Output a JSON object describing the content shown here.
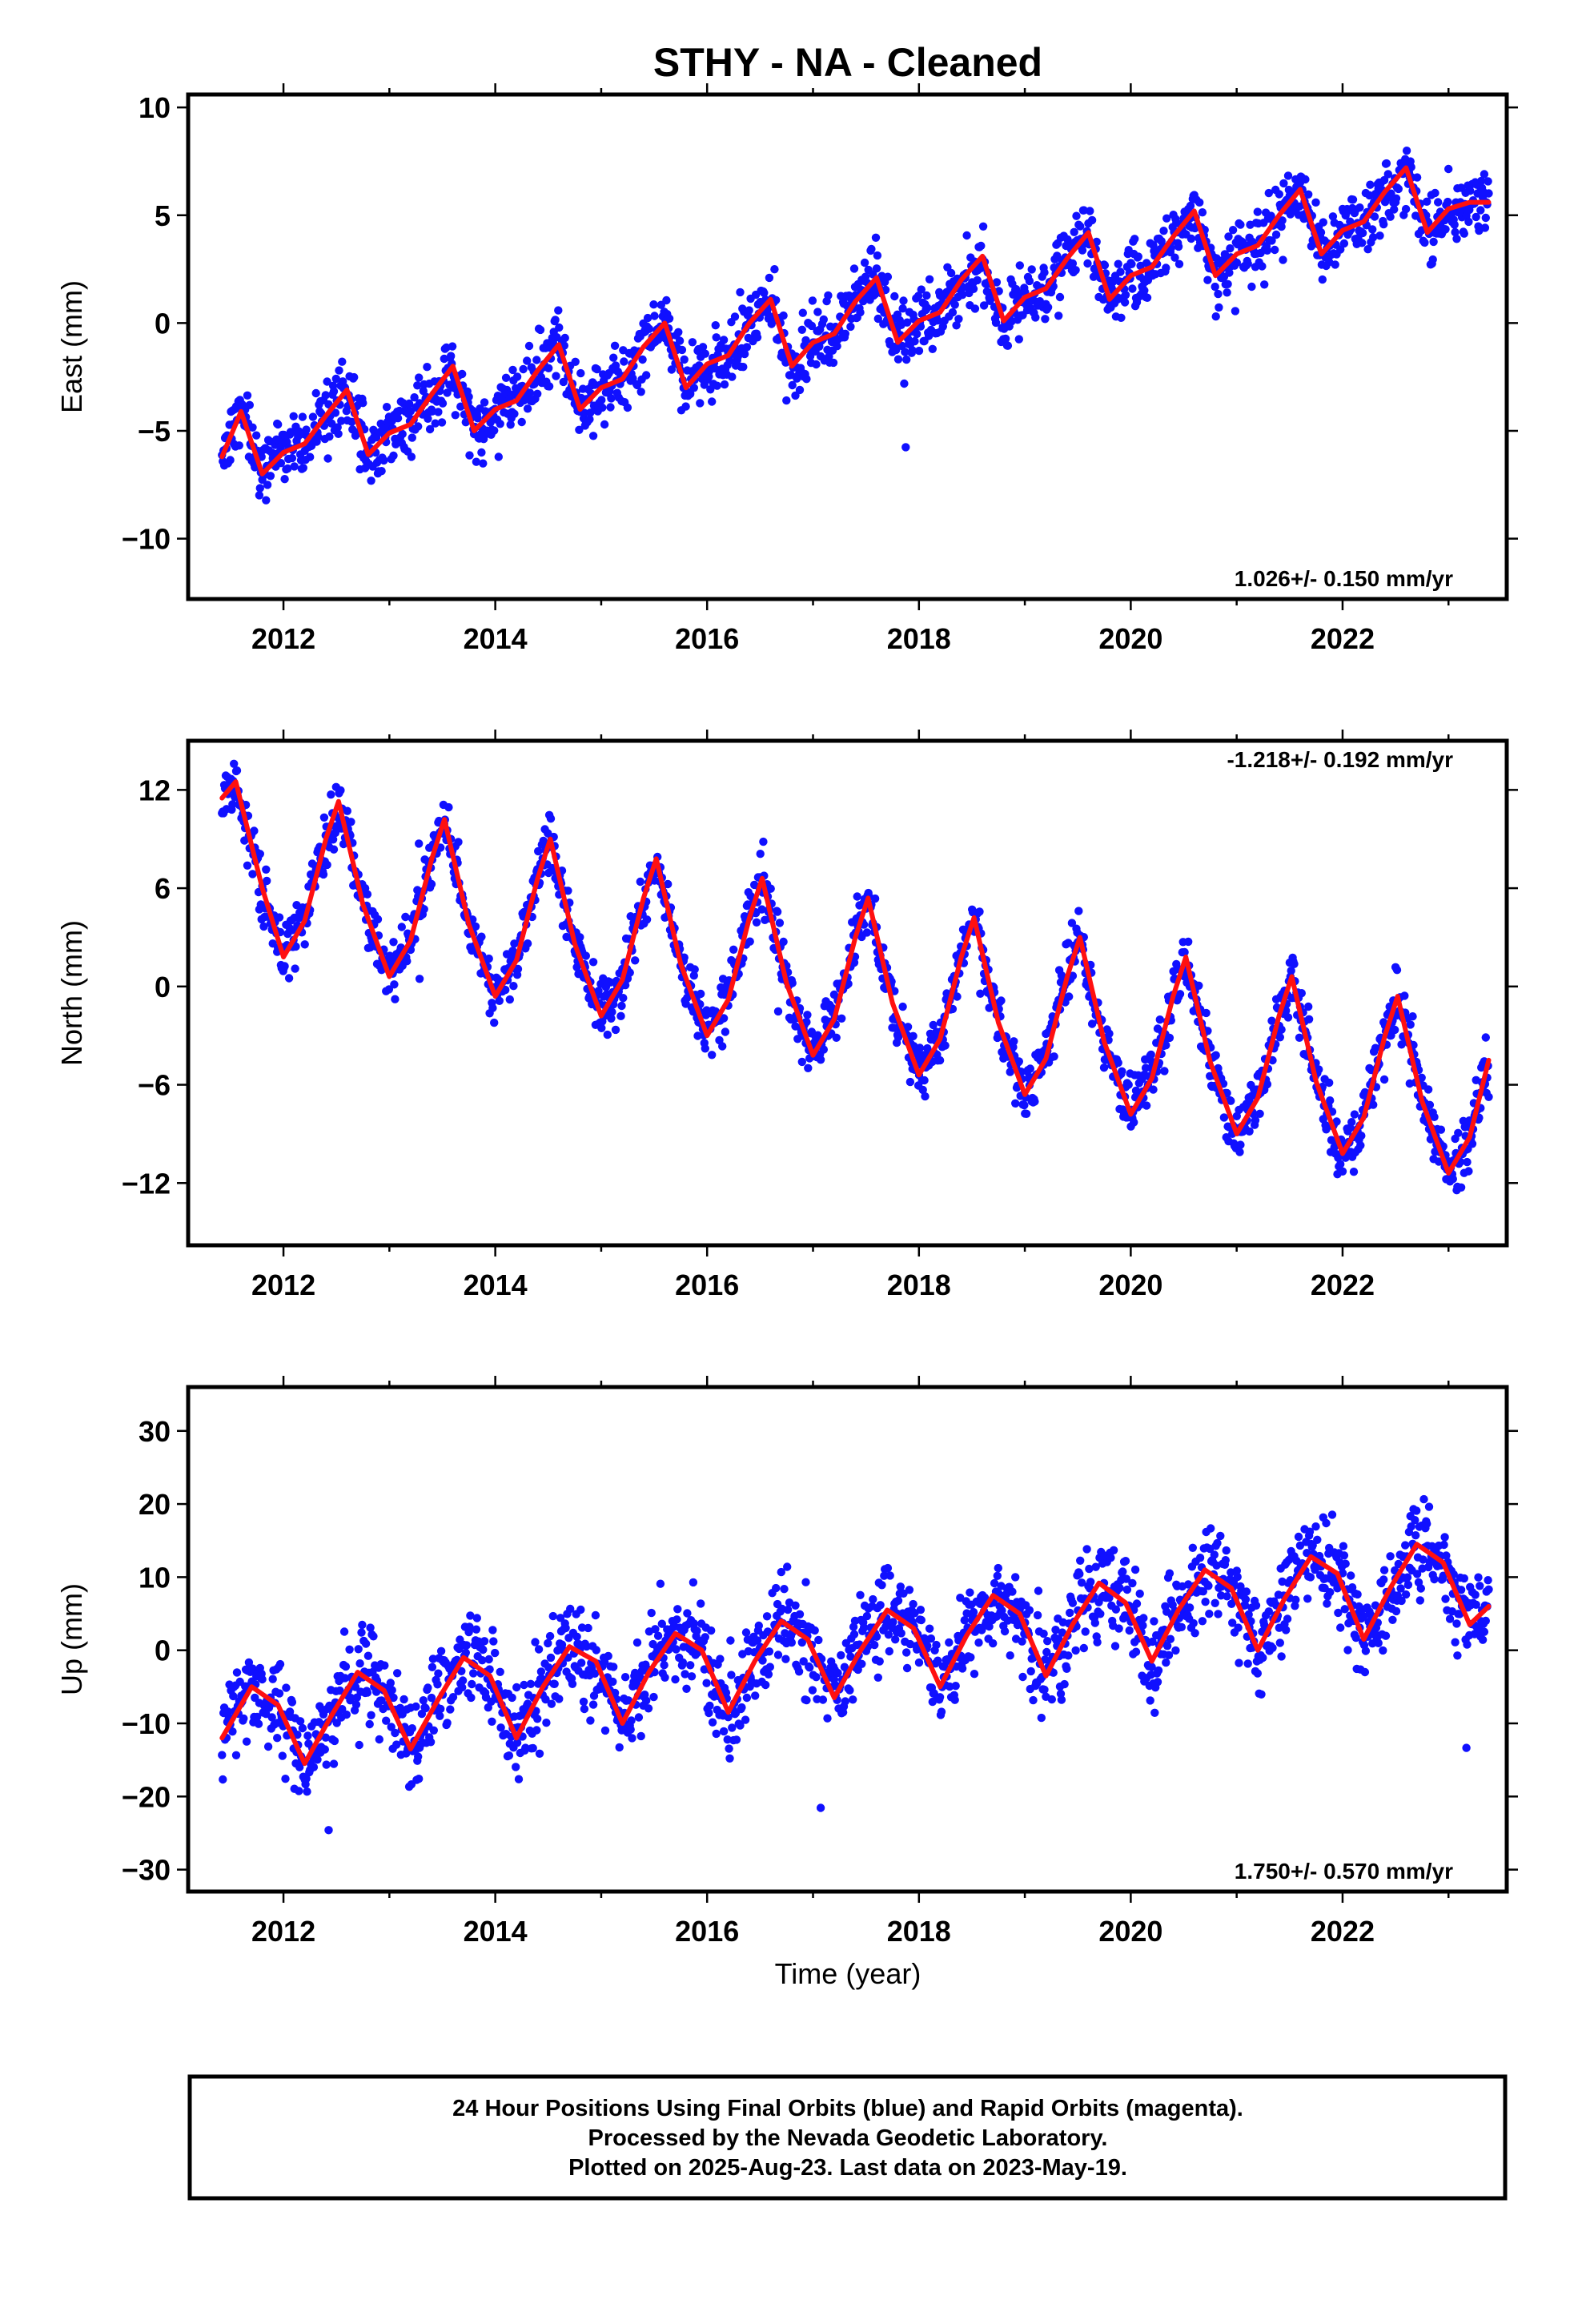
{
  "title": "STHY  - NA - Cleaned",
  "colors": {
    "obs": "#1010ff",
    "fit": "#ff1010",
    "frame": "#000000"
  },
  "chart_data": [
    {
      "type": "scatter",
      "component": "East",
      "ylabel": "East (mm)",
      "xlabel": "",
      "xlim": [
        2011.1,
        2023.55
      ],
      "ylim": [
        -12.8,
        10.6
      ],
      "xticks": [
        "2012",
        "2014",
        "2016",
        "2018",
        "2020",
        "2022"
      ],
      "yticks": [
        "10",
        "5",
        "0",
        "−5",
        "−10"
      ],
      "ytick_values": [
        10,
        5,
        0,
        -5,
        -10
      ],
      "rate_text": "1.026+/- 0.150 mm/yr",
      "rate_position": "bottom-right",
      "series": [
        {
          "name": "Final Orbits",
          "role": "observations",
          "x_range": [
            2011.42,
            2023.38
          ],
          "trend_per_year": 1.026,
          "offset_at_2017": -1.3,
          "annual_amplitude": 1.9,
          "noise": 1.1
        },
        {
          "name": "",
          "role": "fit",
          "x": [
            2011.42,
            2011.6,
            2011.8,
            2012.0,
            2012.2,
            2012.4,
            2012.6,
            2012.8,
            2013.0,
            2013.2,
            2013.4,
            2013.6,
            2013.8,
            2014.0,
            2014.2,
            2014.4,
            2014.6,
            2014.8,
            2015.0,
            2015.2,
            2015.4,
            2015.6,
            2015.8,
            2016.0,
            2016.2,
            2016.4,
            2016.6,
            2016.8,
            2017.0,
            2017.2,
            2017.4,
            2017.6,
            2017.8,
            2018.0,
            2018.2,
            2018.4,
            2018.6,
            2018.8,
            2019.0,
            2019.2,
            2019.4,
            2019.6,
            2019.8,
            2020.0,
            2020.2,
            2020.4,
            2020.6,
            2020.8,
            2021.0,
            2021.2,
            2021.4,
            2021.6,
            2021.8,
            2022.0,
            2022.2,
            2022.4,
            2022.6,
            2022.8,
            2023.0,
            2023.2,
            2023.38
          ],
          "y": [
            -6.2,
            -4.1,
            -7.0,
            -6.0,
            -5.6,
            -4.3,
            -3.1,
            -6.1,
            -5.1,
            -4.7,
            -3.3,
            -2.0,
            -5.0,
            -4.0,
            -3.6,
            -2.2,
            -1.0,
            -4.0,
            -3.0,
            -2.6,
            -1.1,
            0.0,
            -3.0,
            -1.9,
            -1.5,
            0.0,
            1.1,
            -2.0,
            -0.9,
            -0.5,
            1.0,
            2.1,
            -0.9,
            0.1,
            0.5,
            2.0,
            3.1,
            0.1,
            1.2,
            1.6,
            3.0,
            4.2,
            1.1,
            2.2,
            2.6,
            4.0,
            5.2,
            2.2,
            3.2,
            3.6,
            5.0,
            6.2,
            3.2,
            4.3,
            4.7,
            6.1,
            7.2,
            4.2,
            5.3,
            5.6,
            5.6
          ]
        }
      ]
    },
    {
      "type": "scatter",
      "component": "North",
      "ylabel": "North (mm)",
      "xlabel": "",
      "xlim": [
        2011.1,
        2023.55
      ],
      "ylim": [
        -15.8,
        15.0
      ],
      "xticks": [
        "2012",
        "2014",
        "2016",
        "2018",
        "2020",
        "2022"
      ],
      "yticks": [
        "12",
        "6",
        "0",
        "−6",
        "−12"
      ],
      "ytick_values": [
        12,
        6,
        0,
        -6,
        -12
      ],
      "rate_text": "-1.218+/- 0.192 mm/yr",
      "rate_position": "top-right",
      "series": [
        {
          "name": "Final Orbits",
          "role": "observations",
          "x_range": [
            2011.42,
            2023.38
          ],
          "trend_per_year": -1.218,
          "offset_at_2017": 0.4,
          "annual_amplitude": 5.2,
          "noise": 1.3
        },
        {
          "name": "",
          "role": "fit",
          "x": [
            2011.42,
            2011.55,
            2011.8,
            2012.0,
            2012.2,
            2012.4,
            2012.52,
            2012.75,
            2013.0,
            2013.2,
            2013.4,
            2013.52,
            2013.75,
            2014.0,
            2014.2,
            2014.4,
            2014.52,
            2014.75,
            2015.0,
            2015.2,
            2015.4,
            2015.52,
            2015.75,
            2016.0,
            2016.2,
            2016.4,
            2016.52,
            2016.75,
            2017.0,
            2017.2,
            2017.4,
            2017.52,
            2017.75,
            2018.0,
            2018.2,
            2018.4,
            2018.52,
            2018.75,
            2019.0,
            2019.2,
            2019.4,
            2019.52,
            2019.75,
            2020.0,
            2020.2,
            2020.4,
            2020.52,
            2020.75,
            2021.0,
            2021.2,
            2021.4,
            2021.52,
            2021.75,
            2022.0,
            2022.2,
            2022.4,
            2022.52,
            2022.75,
            2023.0,
            2023.2,
            2023.38
          ],
          "y": [
            11.5,
            12.5,
            6.0,
            1.8,
            4.0,
            9.0,
            11.3,
            5.0,
            0.6,
            2.8,
            7.8,
            10.2,
            3.8,
            -0.6,
            1.6,
            6.6,
            9.0,
            2.6,
            -1.8,
            0.4,
            5.4,
            7.8,
            1.4,
            -3.0,
            -0.8,
            4.2,
            6.6,
            0.2,
            -4.2,
            -2.0,
            3.0,
            5.4,
            -1.0,
            -5.4,
            -3.2,
            1.8,
            4.2,
            -2.2,
            -6.6,
            -4.4,
            0.6,
            3.0,
            -3.4,
            -7.8,
            -5.6,
            -0.6,
            1.8,
            -4.6,
            -9.0,
            -6.8,
            -1.8,
            0.6,
            -5.8,
            -10.2,
            -8.0,
            -3.0,
            -0.6,
            -7.0,
            -11.4,
            -9.2,
            -4.5
          ]
        }
      ]
    },
    {
      "type": "scatter",
      "component": "Up",
      "ylabel": "Up (mm)",
      "xlabel": "Time (year)",
      "xlim": [
        2011.1,
        2023.55
      ],
      "ylim": [
        -33.0,
        36.0
      ],
      "xticks": [
        "2012",
        "2014",
        "2016",
        "2018",
        "2020",
        "2022"
      ],
      "yticks": [
        "30",
        "20",
        "10",
        "0",
        "−10",
        "−20",
        "−30"
      ],
      "ytick_values": [
        30,
        20,
        10,
        0,
        -10,
        -20,
        -30
      ],
      "rate_text": "1.750+/- 0.570 mm/yr",
      "rate_position": "bottom-right",
      "series": [
        {
          "name": "Final Orbits",
          "role": "observations",
          "x_range": [
            2011.42,
            2023.38
          ],
          "trend_per_year": 1.75,
          "offset_at_2017": -2.0,
          "annual_amplitude": 6.0,
          "noise": 4.5
        },
        {
          "name": "",
          "role": "fit",
          "x": [
            2011.42,
            2011.7,
            2011.95,
            2012.2,
            2012.45,
            2012.7,
            2012.95,
            2013.2,
            2013.45,
            2013.7,
            2013.95,
            2014.2,
            2014.45,
            2014.7,
            2014.95,
            2015.2,
            2015.45,
            2015.7,
            2015.95,
            2016.2,
            2016.45,
            2016.7,
            2016.95,
            2017.2,
            2017.45,
            2017.7,
            2017.95,
            2018.2,
            2018.45,
            2018.7,
            2018.95,
            2019.2,
            2019.45,
            2019.7,
            2019.95,
            2020.2,
            2020.45,
            2020.7,
            2020.95,
            2021.2,
            2021.45,
            2021.7,
            2021.95,
            2022.2,
            2022.45,
            2022.7,
            2022.95,
            2023.2,
            2023.38
          ],
          "y": [
            -12.0,
            -5.0,
            -7.5,
            -15.5,
            -9.0,
            -3.0,
            -5.5,
            -13.5,
            -7.0,
            -1.0,
            -3.5,
            -12.0,
            -5.0,
            0.5,
            -1.5,
            -10.0,
            -3.0,
            2.3,
            0.0,
            -8.5,
            -1.5,
            4.0,
            1.5,
            -6.5,
            0.0,
            5.5,
            3.0,
            -5.0,
            2.0,
            7.5,
            5.0,
            -3.5,
            3.5,
            9.2,
            6.5,
            -1.5,
            5.5,
            11.0,
            8.5,
            0.0,
            7.0,
            12.8,
            10.5,
            1.5,
            8.5,
            14.5,
            12.0,
            3.5,
            6.0
          ]
        }
      ]
    }
  ],
  "footer": {
    "line1": "24 Hour Positions Using Final Orbits (blue) and Rapid Orbits (magenta).",
    "line2": "Processed by the Nevada Geodetic Laboratory.",
    "line3": "Plotted on 2025-Aug-23. Last data on 2023-May-19."
  }
}
